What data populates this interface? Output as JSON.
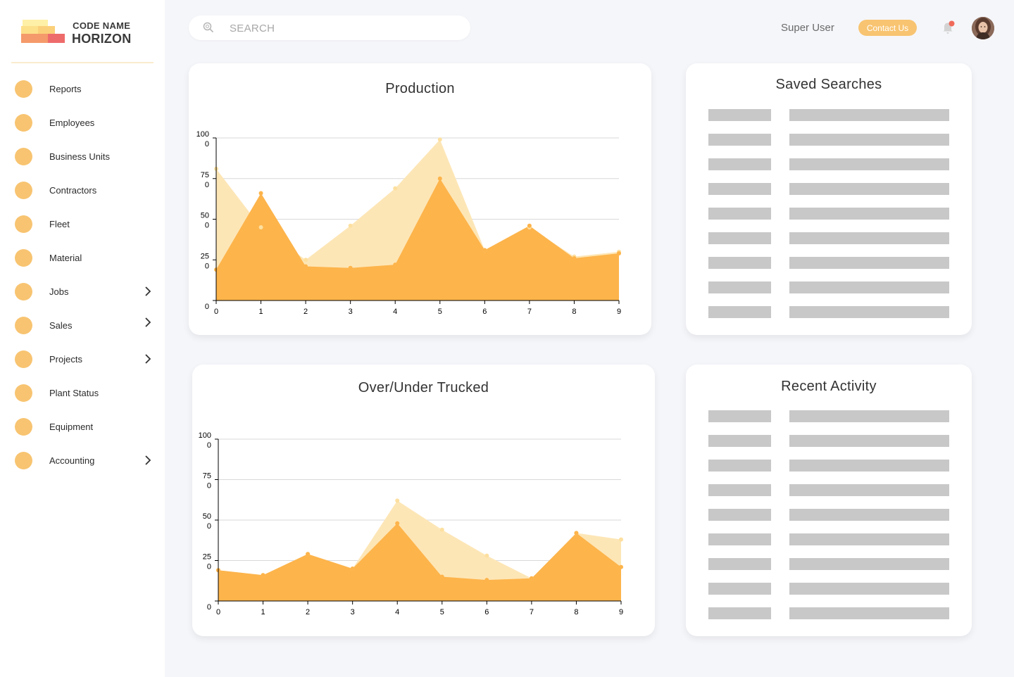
{
  "app": {
    "logo_small": "CODE NAME",
    "logo_big": "HORIZON"
  },
  "colors": {
    "accent": "#f8c471",
    "series_dark": "#fdb44b",
    "series_light": "#fde6b6"
  },
  "sidebar": {
    "items": [
      {
        "label": "Reports",
        "has_chevron": false,
        "icon": "circle-icon"
      },
      {
        "label": "Employees",
        "has_chevron": false,
        "icon": "circle-icon"
      },
      {
        "label": "Business Units",
        "has_chevron": false,
        "icon": "circle-icon"
      },
      {
        "label": "Contractors",
        "has_chevron": false,
        "icon": "circle-icon"
      },
      {
        "label": "Fleet",
        "has_chevron": false,
        "icon": "circle-icon"
      },
      {
        "label": "Material",
        "has_chevron": false,
        "icon": "circle-icon"
      },
      {
        "label": "Jobs",
        "has_chevron": true,
        "icon": "circle-icon"
      },
      {
        "label": "Sales",
        "has_chevron": true,
        "icon": "circle-icon"
      },
      {
        "label": "Projects",
        "has_chevron": true,
        "icon": "circle-icon"
      },
      {
        "label": "Plant Status",
        "has_chevron": false,
        "icon": "circle-icon"
      },
      {
        "label": "Equipment",
        "has_chevron": false,
        "icon": "circle-icon"
      },
      {
        "label": "Accounting",
        "has_chevron": true,
        "icon": "circle-icon"
      }
    ]
  },
  "header": {
    "search_placeholder": "SEARCH",
    "user_name": "Super User",
    "contact_label": "Contact Us"
  },
  "cards": {
    "saved_searches_title": "Saved Searches",
    "recent_activity_title": "Recent Activity",
    "saved_searches_rows": 9,
    "recent_activity_rows": 9
  },
  "chart_data": [
    {
      "type": "area",
      "title": "Production",
      "x": [
        0,
        1,
        2,
        3,
        4,
        5,
        6,
        7,
        8,
        9
      ],
      "y_ticks": [
        "0",
        "250",
        "500",
        "750",
        "1000"
      ],
      "y_tick_values": [
        0,
        250,
        500,
        750,
        1000
      ],
      "ylim": [
        0,
        1000
      ],
      "series": [
        {
          "name": "series-light",
          "values": [
            810,
            450,
            250,
            460,
            690,
            990,
            310,
            450,
            270,
            300
          ]
        },
        {
          "name": "series-dark",
          "values": [
            190,
            660,
            210,
            200,
            220,
            750,
            310,
            460,
            260,
            290
          ]
        }
      ]
    },
    {
      "type": "area",
      "title": "Over/Under Trucked",
      "x": [
        0,
        1,
        2,
        3,
        4,
        5,
        6,
        7,
        8,
        9
      ],
      "y_ticks": [
        "0",
        "250",
        "500",
        "750",
        "1000"
      ],
      "y_tick_values": [
        0,
        250,
        500,
        750,
        1000
      ],
      "ylim": [
        0,
        1000
      ],
      "series": [
        {
          "name": "series-light",
          "values": [
            190,
            160,
            290,
            200,
            620,
            440,
            280,
            140,
            420,
            380
          ]
        },
        {
          "name": "series-dark",
          "values": [
            190,
            160,
            290,
            200,
            480,
            150,
            130,
            140,
            420,
            210
          ]
        }
      ]
    }
  ]
}
